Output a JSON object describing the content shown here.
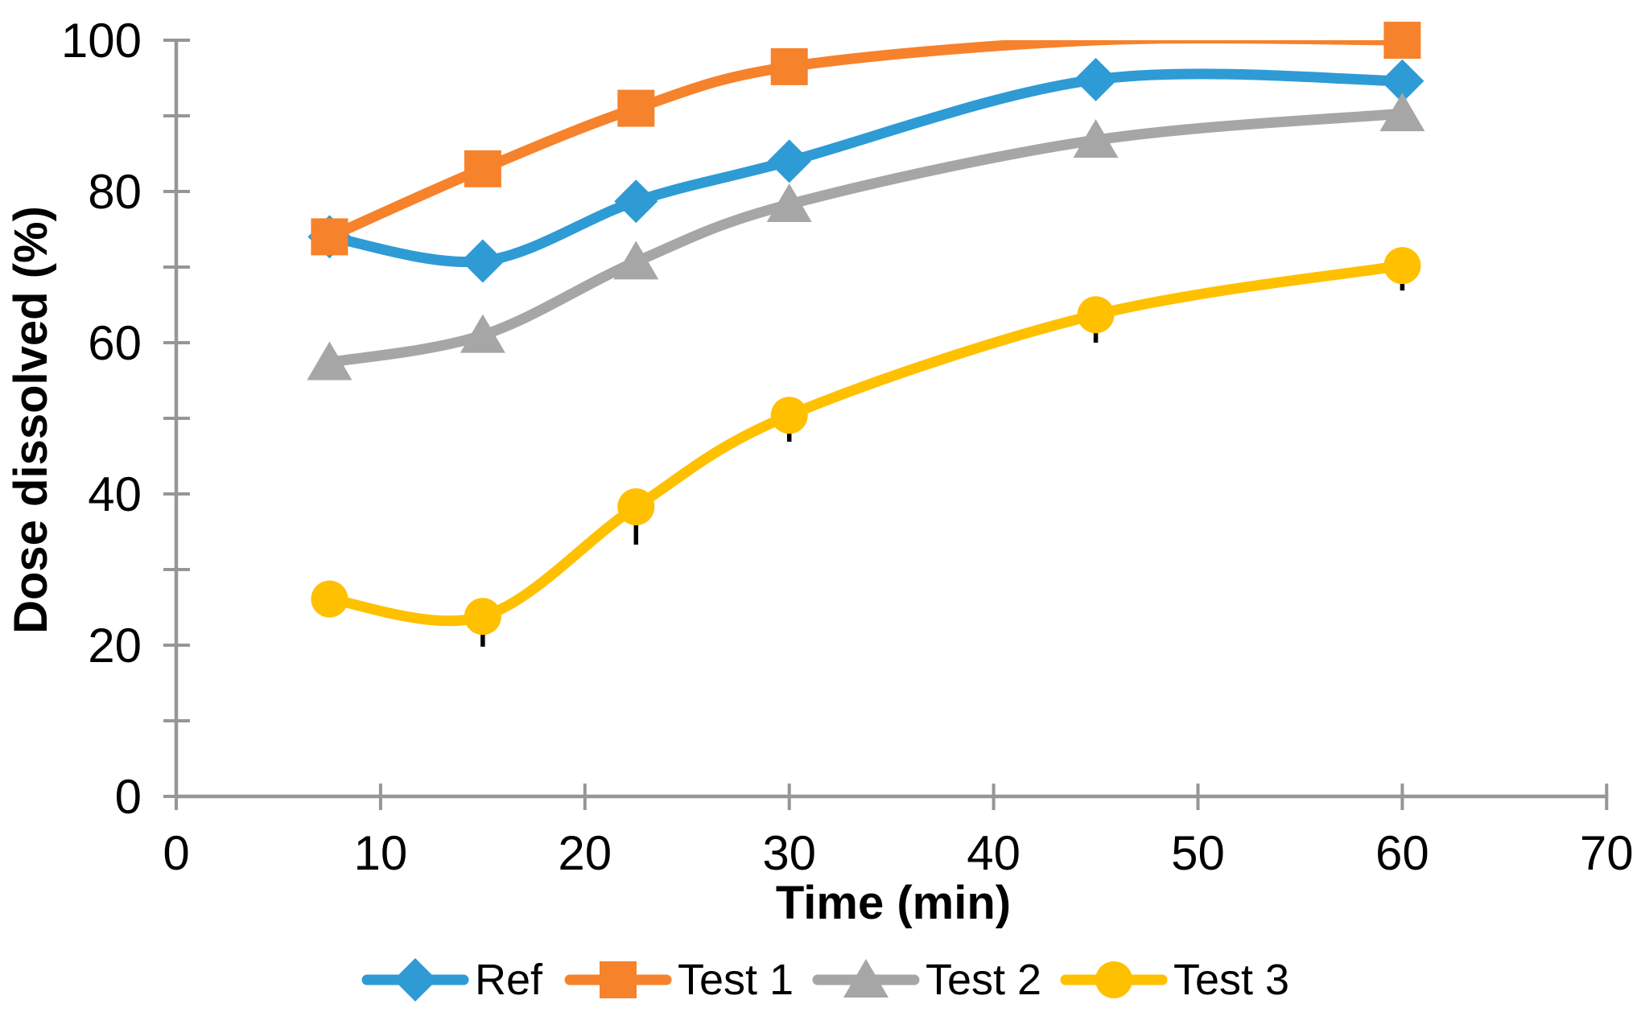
{
  "chart_data": {
    "type": "line",
    "title": "",
    "xlabel": "Time (min)",
    "ylabel": "Dose dissolved (%)",
    "xlim": [
      0,
      70
    ],
    "ylim": [
      0,
      100
    ],
    "x_ticks": [
      0,
      10,
      20,
      30,
      40,
      50,
      60,
      70
    ],
    "y_ticks": [
      0,
      20,
      40,
      60,
      80,
      100
    ],
    "y_minor_step": 10,
    "grid": false,
    "smooth": true,
    "legend_position": "bottom",
    "axis_color": "#969696",
    "error_bar_color": "#000000",
    "x": [
      7.5,
      15,
      22.5,
      30,
      45,
      60
    ],
    "series": [
      {
        "name": "Ref",
        "color": "#2E9BD5",
        "marker": "diamond",
        "values": [
          74,
          70.8,
          78.7,
          84,
          94.8,
          94.6
        ],
        "error_minus": [
          0,
          0,
          0,
          0,
          0,
          0
        ],
        "hidden_marker_indices": []
      },
      {
        "name": "Test 1",
        "color": "#F6822C",
        "marker": "square",
        "values": [
          74,
          83,
          91,
          96.5,
          100,
          100
        ],
        "error_minus": [
          0,
          0,
          0,
          0,
          0,
          0
        ],
        "hidden_marker_indices": [
          4
        ]
      },
      {
        "name": "Test 2",
        "color": "#A6A6A6",
        "marker": "triangle",
        "values": [
          57.4,
          61,
          70.7,
          78.3,
          86.8,
          90.3
        ],
        "error_minus": [
          0,
          0,
          0,
          0,
          0,
          2.3
        ],
        "hidden_marker_indices": []
      },
      {
        "name": "Test 3",
        "color": "#FFC000",
        "marker": "circle",
        "values": [
          26.1,
          23.8,
          38.3,
          50.4,
          63.7,
          70.2
        ],
        "error_minus": [
          0,
          4,
          5,
          3.5,
          3.7,
          3.3
        ],
        "hidden_marker_indices": []
      }
    ]
  }
}
